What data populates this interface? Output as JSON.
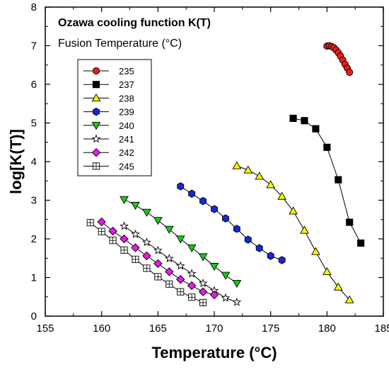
{
  "chart_data": {
    "type": "line",
    "title": "Ozawa cooling function K(T)",
    "subtitle": "Fusion Temperature (°C)",
    "xlabel": "Temperature (°C)",
    "ylabel": "log[K(T)]",
    "xlim": [
      155,
      185
    ],
    "ylim": [
      0,
      8
    ],
    "x_ticks": [
      "155",
      "160",
      "165",
      "170",
      "175",
      "180",
      "185"
    ],
    "y_ticks": [
      "0",
      "1",
      "2",
      "3",
      "4",
      "5",
      "6",
      "7",
      "8"
    ],
    "legend_position": "top-left",
    "grid": false,
    "series": [
      {
        "name": "235",
        "marker": "circle",
        "color": "#e8201a",
        "x": [
          180.0,
          180.2,
          180.4,
          180.6,
          180.8,
          181.0,
          181.2,
          181.4,
          181.6,
          181.8,
          182.0
        ],
        "y": [
          6.99,
          7.0,
          6.98,
          6.95,
          6.89,
          6.82,
          6.73,
          6.63,
          6.52,
          6.42,
          6.31
        ]
      },
      {
        "name": "237",
        "marker": "square",
        "color": "#000000",
        "x": [
          177,
          178,
          179,
          180,
          181,
          182,
          183
        ],
        "y": [
          5.12,
          5.06,
          4.85,
          4.37,
          3.53,
          2.43,
          1.89
        ]
      },
      {
        "name": "238",
        "marker": "triangle-up",
        "color": "#f5f500",
        "x": [
          172,
          173,
          174,
          175,
          176,
          177,
          178,
          179,
          180,
          181,
          182
        ],
        "y": [
          3.89,
          3.78,
          3.62,
          3.4,
          3.1,
          2.72,
          2.22,
          1.67,
          1.15,
          0.75,
          0.42
        ]
      },
      {
        "name": "239",
        "marker": "hexagon",
        "color": "#1528d8",
        "x": [
          167,
          168,
          169,
          170,
          171,
          172,
          173,
          174,
          175,
          176
        ],
        "y": [
          3.36,
          3.17,
          2.98,
          2.77,
          2.53,
          2.26,
          1.98,
          1.76,
          1.56,
          1.45
        ]
      },
      {
        "name": "240",
        "marker": "triangle-down",
        "color": "#1ac81a",
        "x": [
          162,
          163,
          164,
          165,
          166,
          167,
          168,
          169,
          170,
          171,
          172
        ],
        "y": [
          3.02,
          2.87,
          2.69,
          2.48,
          2.25,
          2.0,
          1.77,
          1.54,
          1.29,
          1.06,
          0.85
        ]
      },
      {
        "name": "241",
        "marker": "star",
        "color": "#ffffff",
        "x": [
          162,
          163,
          164,
          165,
          166,
          167,
          168,
          169,
          170,
          171,
          172
        ],
        "y": [
          2.33,
          2.12,
          1.91,
          1.7,
          1.49,
          1.3,
          1.1,
          0.85,
          0.66,
          0.47,
          0.36
        ]
      },
      {
        "name": "242",
        "marker": "diamond",
        "color": "#e819e8",
        "x": [
          160,
          161,
          162,
          163,
          164,
          165,
          166,
          167,
          168,
          169,
          170
        ],
        "y": [
          2.44,
          2.2,
          2.0,
          1.77,
          1.56,
          1.36,
          1.15,
          0.95,
          0.79,
          0.63,
          0.55
        ]
      },
      {
        "name": "245",
        "marker": "square-cross",
        "color": "#ffffff",
        "x": [
          159,
          160,
          161,
          162,
          163,
          164,
          165,
          166,
          167,
          168,
          169
        ],
        "y": [
          2.42,
          2.19,
          1.96,
          1.71,
          1.47,
          1.24,
          1.02,
          0.83,
          0.63,
          0.49,
          0.35
        ]
      }
    ]
  }
}
